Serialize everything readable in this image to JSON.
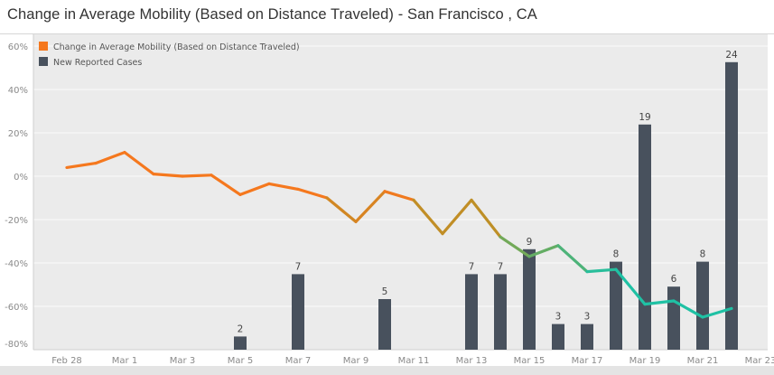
{
  "title": "Change in Average Mobility (Based on Distance Traveled) -  San Francisco , CA",
  "chart_data": {
    "type": "bar+line",
    "title": "Change in Average Mobility (Based on Distance Traveled) -  San Francisco , CA",
    "legend_position": "top-left",
    "legend": [
      {
        "label": "Change in Average Mobility (Based on Distance Traveled)",
        "color": "#f5781e"
      },
      {
        "label": "New Reported Cases",
        "color": "#48515d"
      }
    ],
    "y_ticks": [
      "60%",
      "40%",
      "20%",
      "0%",
      "-20%",
      "-40%",
      "-60%",
      "-80%"
    ],
    "ylim": [
      -80,
      60
    ],
    "x_ticks": [
      "Feb 28",
      "Mar 1",
      "Mar 3",
      "Mar 5",
      "Mar 7",
      "Mar 9",
      "Mar 11",
      "Mar 13",
      "Mar 15",
      "Mar 17",
      "Mar 19",
      "Mar 21",
      "Mar 23"
    ],
    "grid": true,
    "dates": [
      "Feb 28",
      "Feb 29",
      "Mar 1",
      "Mar 2",
      "Mar 3",
      "Mar 4",
      "Mar 5",
      "Mar 6",
      "Mar 7",
      "Mar 8",
      "Mar 9",
      "Mar 10",
      "Mar 11",
      "Mar 12",
      "Mar 13",
      "Mar 14",
      "Mar 15",
      "Mar 16",
      "Mar 17",
      "Mar 18",
      "Mar 19",
      "Mar 20",
      "Mar 21",
      "Mar 22"
    ],
    "series": [
      {
        "name": "Change in Average Mobility (Based on Distance Traveled)",
        "type": "line",
        "unit": "%",
        "values": [
          4,
          6,
          11,
          1,
          0,
          0.5,
          -8.5,
          -3.5,
          -6,
          -10,
          -21,
          -7,
          -11,
          -26.5,
          -11,
          -28,
          -37,
          -32,
          -44,
          -43,
          -59,
          -57.5,
          -65,
          -61
        ],
        "colors": {
          "high": "#f5781e",
          "mid": "#a39a2a",
          "low": "#1fc1a4"
        }
      },
      {
        "name": "New Reported Cases",
        "type": "bar",
        "color": "#48515d",
        "values": [
          null,
          null,
          null,
          null,
          null,
          null,
          2,
          null,
          7,
          null,
          null,
          5,
          null,
          null,
          7,
          7,
          9,
          3,
          3,
          8,
          19,
          6,
          8,
          24
        ]
      }
    ]
  }
}
